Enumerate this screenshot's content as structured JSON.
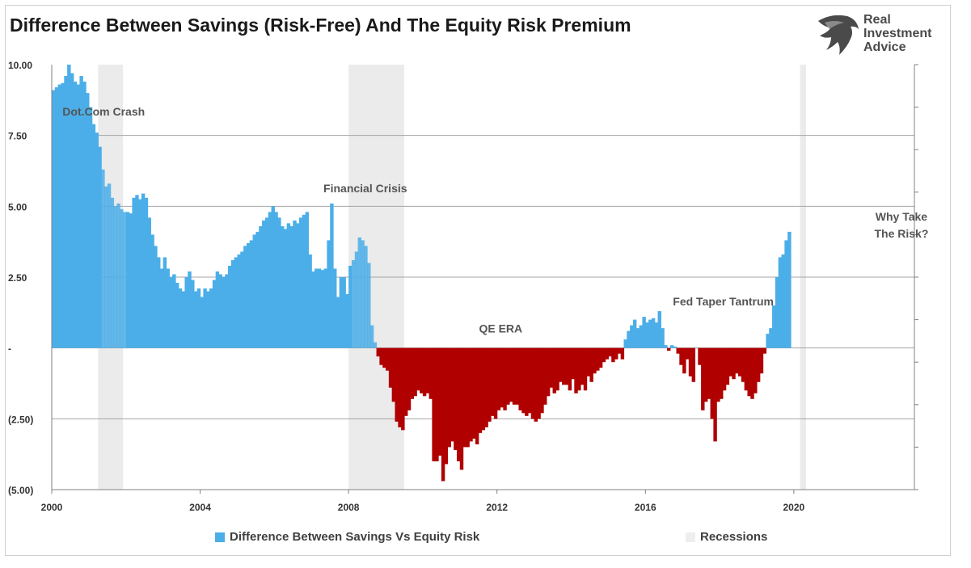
{
  "header": {
    "title": "Difference Between Savings (Risk-Free) And The Equity Risk Premium",
    "logo_lines": [
      "Real",
      "Investment",
      "Advice"
    ]
  },
  "colors": {
    "positive": "#4baee8",
    "negative": "#b00000",
    "recession": "#e3e3e3",
    "grid": "#a6a6a6"
  },
  "chart_data": {
    "type": "bar",
    "title": "Difference Between Savings (Risk-Free) And The Equity Risk Premium",
    "xlabel": "",
    "ylabel": "",
    "xlim": [
      2000,
      2023.25
    ],
    "ylim": [
      -5,
      10
    ],
    "y_ticks": [
      10,
      7.5,
      5,
      2.5,
      0,
      -2.5,
      -5
    ],
    "y_tick_labels": [
      "10.00",
      "7.50",
      "5.00",
      "2.50",
      "-",
      "(2.50)",
      "(5.00)"
    ],
    "x_ticks": [
      2000,
      2004,
      2008,
      2012,
      2016,
      2020
    ],
    "x_tick_labels": [
      "2000",
      "2004",
      "2008",
      "2012",
      "2016",
      "2020"
    ],
    "grid": true,
    "legend_position": "bottom",
    "series": [
      {
        "name": "Difference Between Savings Vs Equity Risk",
        "x_start": 2000.0,
        "x_step": 0.08333,
        "values": [
          9.1,
          9.2,
          9.3,
          9.35,
          9.6,
          10.0,
          9.7,
          9.4,
          9.3,
          9.6,
          9.4,
          9.0,
          8.5,
          7.9,
          7.6,
          7.1,
          6.3,
          5.7,
          5.8,
          5.3,
          5.0,
          5.1,
          4.9,
          4.8,
          4.8,
          4.75,
          5.3,
          5.4,
          5.25,
          5.45,
          5.3,
          4.6,
          4.0,
          3.6,
          3.2,
          2.8,
          3.2,
          2.8,
          2.5,
          2.6,
          2.3,
          2.1,
          2.0,
          2.5,
          2.7,
          2.4,
          2.0,
          2.1,
          1.8,
          2.1,
          2.0,
          2.1,
          2.4,
          2.7,
          2.6,
          2.5,
          2.6,
          2.9,
          3.1,
          3.2,
          3.3,
          3.4,
          3.6,
          3.7,
          3.8,
          4.0,
          4.1,
          4.3,
          4.5,
          4.6,
          4.8,
          5.0,
          4.8,
          4.6,
          4.3,
          4.2,
          4.4,
          4.3,
          4.5,
          4.4,
          4.6,
          4.7,
          4.8,
          3.3,
          2.7,
          2.8,
          2.8,
          2.75,
          2.8,
          3.8,
          5.1,
          2.8,
          1.8,
          2.5,
          2.5,
          1.9,
          2.9,
          3.1,
          3.4,
          3.9,
          3.8,
          3.6,
          3.0,
          0.8,
          0.2,
          -0.3,
          -0.6,
          -0.7,
          -0.8,
          -1.4,
          -1.9,
          -2.6,
          -2.8,
          -2.9,
          -2.4,
          -2.2,
          -1.8,
          -1.7,
          -1.5,
          -1.6,
          -1.7,
          -1.6,
          -1.8,
          -4.0,
          -4.0,
          -3.8,
          -4.7,
          -4.1,
          -3.5,
          -3.3,
          -3.6,
          -4.0,
          -4.3,
          -3.5,
          -3.5,
          -3.3,
          -3.2,
          -3.4,
          -3.0,
          -2.9,
          -2.8,
          -2.6,
          -2.4,
          -2.5,
          -2.2,
          -2.1,
          -2.2,
          -2.0,
          -1.9,
          -2.0,
          -2.0,
          -2.2,
          -2.3,
          -2.4,
          -2.3,
          -2.5,
          -2.6,
          -2.5,
          -2.3,
          -2.0,
          -1.7,
          -1.4,
          -1.6,
          -1.5,
          -1.2,
          -1.3,
          -1.3,
          -1.5,
          -1.1,
          -1.6,
          -1.5,
          -1.3,
          -1.5,
          -1.0,
          -1.2,
          -0.9,
          -0.8,
          -0.7,
          -0.5,
          -0.4,
          -0.3,
          -0.5,
          -0.4,
          -0.2,
          -0.4,
          0.3,
          0.6,
          0.8,
          1.0,
          0.7,
          0.8,
          1.1,
          0.9,
          1.0,
          1.05,
          0.9,
          1.3,
          0.7,
          0.1,
          -0.1,
          0.1,
          0.05,
          -0.2,
          -0.6,
          -0.9,
          -0.4,
          -1.0,
          -1.2,
          0.0,
          -0.6,
          -2.2,
          -1.9,
          -1.8,
          -2.5,
          -3.3,
          -1.9,
          -1.8,
          -1.5,
          -1.3,
          -1.0,
          -1.1,
          -0.9,
          -1.0,
          -1.2,
          -1.5,
          -1.7,
          -1.8,
          -1.6,
          -1.2,
          -0.9,
          -0.2,
          0.5,
          0.7,
          1.5,
          2.5,
          3.2,
          3.3,
          3.8,
          4.1
        ]
      },
      {
        "name": "Recessions",
        "periods": [
          [
            2001.25,
            2001.92
          ],
          [
            2008.0,
            2009.5
          ],
          [
            2020.17,
            2020.33
          ]
        ]
      }
    ],
    "annotations": [
      {
        "text": "Dot.Com Crash",
        "x": 2001.4,
        "y": 8.2
      },
      {
        "text": "Financial Crisis",
        "x": 2008.45,
        "y": 5.5
      },
      {
        "text": "QE ERA",
        "x": 2012.1,
        "y": 0.55
      },
      {
        "text": "Fed Taper Tantrum",
        "x": 2018.1,
        "y": 1.5
      },
      {
        "text": "Why Take",
        "x": 2022.9,
        "y": 4.5
      },
      {
        "text": "The Risk?",
        "x": 2022.9,
        "y": 3.9
      }
    ]
  },
  "legend": {
    "items": [
      {
        "label": "Difference Between Savings Vs Equity Risk",
        "color": "#4baee8"
      },
      {
        "label": "Recessions",
        "color": "#eeeeee"
      }
    ]
  }
}
